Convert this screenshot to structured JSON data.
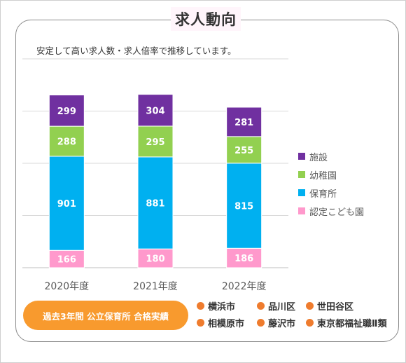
{
  "title": "求人動向",
  "subtitle": "安定して高い求人数・求人倍率で推移しています。",
  "chart_data": {
    "type": "bar",
    "stacked": true,
    "categories": [
      "2020年度",
      "2021年度",
      "2022年度"
    ],
    "series": [
      {
        "name": "認定こども園",
        "values": [
          166,
          180,
          186
        ],
        "color": "#ff99cc"
      },
      {
        "name": "保育所",
        "values": [
          901,
          881,
          815
        ],
        "color": "#00b0f0"
      },
      {
        "name": "幼稚園",
        "values": [
          288,
          295,
          255
        ],
        "color": "#92d050"
      },
      {
        "name": "施設",
        "values": [
          299,
          304,
          281
        ],
        "color": "#7030a0"
      }
    ],
    "legend_order": [
      "施設",
      "幼稚園",
      "保育所",
      "認定こども園"
    ],
    "legend_position": "right",
    "ylim": [
      0,
      2000
    ],
    "grid": true
  },
  "badge_text": "過去3年間 公立保育所 合格実績",
  "cities": [
    "横浜市",
    "品川区",
    "世田谷区",
    "相模原市",
    "藤沢市",
    "東京都福祉職Ⅱ類"
  ],
  "colors": {
    "badge": "#f89a2e",
    "city_dot": "#ef7c2e",
    "title_bg": "#fff5fb"
  }
}
